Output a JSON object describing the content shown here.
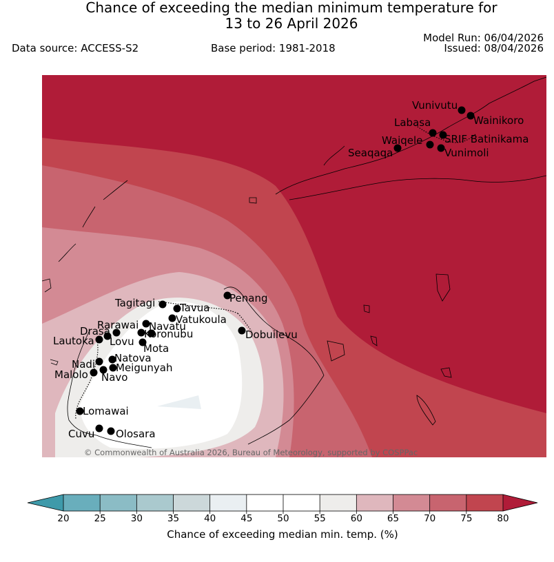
{
  "title": {
    "line1": "Chance of exceeding the median minimum temperature for",
    "line2": "13 to 26 April 2026"
  },
  "meta": {
    "data_source": "Data source: ACCESS-S2",
    "base_period": "Base period: 1981-2018",
    "model_run": "Model Run: 06/04/2026",
    "issued": "Issued: 08/04/2026"
  },
  "copyright": "© Commonwealth of Australia 2026, Bureau of Meteorology, supported by COSPPac",
  "colorbar": {
    "label": "Chance of exceeding median min. temp. (%)",
    "ticks": [
      "20",
      "25",
      "30",
      "35",
      "40",
      "45",
      "50",
      "55",
      "60",
      "65",
      "70",
      "75",
      "80"
    ],
    "colors": [
      "#69aebc",
      "#8bbcc5",
      "#aac9ce",
      "#ccd8da",
      "#eaeff2",
      "#ffffff",
      "#ffffff",
      "#eeedeb",
      "#dfb7bd",
      "#d38a94",
      "#c8646f",
      "#c1454f"
    ],
    "under_color": "#3e9aaa",
    "over_color": "#b01c38"
  },
  "stations": [
    {
      "name": "Vunivutu",
      "lon": 670,
      "lat": 160
    },
    {
      "name": "Wainikoro",
      "lon": 683,
      "lat": 168
    },
    {
      "name": "Labasa",
      "lon": 628,
      "lat": 193
    },
    {
      "name": "SRIF Batinikama",
      "lon": 643,
      "lat": 196
    },
    {
      "name": "Waiqele",
      "lon": 624,
      "lat": 210
    },
    {
      "name": "Vunimoli",
      "lon": 640,
      "lat": 215
    },
    {
      "name": "Seaqaqa",
      "lon": 577,
      "lat": 215
    },
    {
      "name": "Penang",
      "lon": 330,
      "lat": 429
    },
    {
      "name": "Tagitagi",
      "lon": 236,
      "lat": 442
    },
    {
      "name": "Tavua",
      "lon": 257,
      "lat": 448
    },
    {
      "name": "Vatukoula",
      "lon": 250,
      "lat": 462
    },
    {
      "name": "Rarawai",
      "lon": 212,
      "lat": 470
    },
    {
      "name": "Navatu",
      "lon": 220,
      "lat": 484
    },
    {
      "name": "Koronubu",
      "lon": 205,
      "lat": 483
    },
    {
      "name": "Drasa",
      "lon": 169,
      "lat": 483
    },
    {
      "name": "Lautoka",
      "lon": 144,
      "lat": 493
    },
    {
      "name": "Lovu",
      "lon": 156,
      "lat": 488
    },
    {
      "name": "Mota",
      "lon": 207,
      "lat": 497
    },
    {
      "name": "Dobuilevu",
      "lon": 351,
      "lat": 480
    },
    {
      "name": "Nadi",
      "lon": 144,
      "lat": 525
    },
    {
      "name": "Natova",
      "lon": 163,
      "lat": 522
    },
    {
      "name": "Meigunyah",
      "lon": 164,
      "lat": 534
    },
    {
      "name": "Malolo",
      "lon": 136,
      "lat": 541
    },
    {
      "name": "Navo",
      "lon": 150,
      "lat": 537
    },
    {
      "name": "Lomawai",
      "lon": 116,
      "lat": 597
    },
    {
      "name": "Cuvu",
      "lon": 144,
      "lat": 622
    },
    {
      "name": "Olosara",
      "lon": 161,
      "lat": 626
    }
  ]
}
